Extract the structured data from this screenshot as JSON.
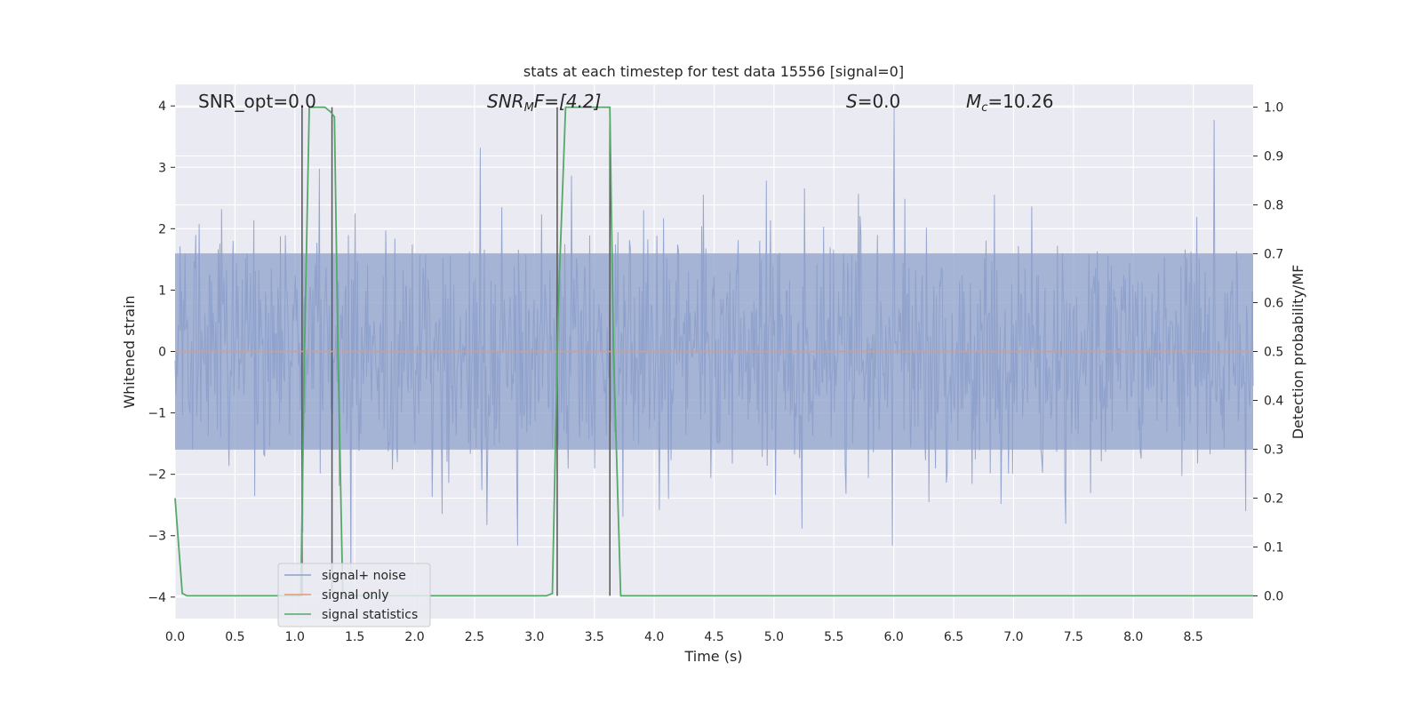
{
  "chart_data": {
    "type": "line",
    "title": "stats at each timestep for test data 15556 [signal=0]",
    "xlabel": "Time (s)",
    "ylabel_left": "Whitened strain",
    "ylabel_right": "Detection probability/MF",
    "xlim": [
      0,
      9
    ],
    "ylim_left": [
      -4.35,
      4.35
    ],
    "ylim_right": [
      -0.0465,
      1.0465
    ],
    "x_ticks": [
      "0.0",
      "0.5",
      "1.0",
      "1.5",
      "2.0",
      "2.5",
      "3.0",
      "3.5",
      "4.0",
      "4.5",
      "5.0",
      "5.5",
      "6.0",
      "6.5",
      "7.0",
      "7.5",
      "8.0",
      "8.5"
    ],
    "y_ticks_left": [
      "4",
      "3",
      "2",
      "1",
      "0",
      "−1",
      "−2",
      "−3",
      "−4"
    ],
    "y_ticks_right": [
      "1.0",
      "0.9",
      "0.8",
      "0.7",
      "0.6",
      "0.5",
      "0.4",
      "0.3",
      "0.2",
      "0.1",
      "0.0"
    ],
    "grid": true,
    "annotations": {
      "snr_opt": "SNR_opt=0.0",
      "snr_mf_base": "SNR",
      "snr_mf_sub": "M",
      "snr_mf_rest": "F=[4.2]",
      "s_italic": "S",
      "s_rest": "=0.0",
      "mc_base": "M",
      "mc_sub": "c",
      "mc_rest": "=10.26"
    },
    "series": [
      {
        "name": "signal+ noise",
        "color": "#8da0cb",
        "description_values": {
          "typical_envelope": [
            -1.6,
            1.6
          ],
          "extremes_approx": [
            -3.7,
            4.0
          ],
          "sample_rate_hz": 2048
        }
      },
      {
        "name": "signal only",
        "color": "#e39a74",
        "values_note_constant": 0
      },
      {
        "name": "signal statistics",
        "color": "#55a868",
        "x": [
          0.0,
          0.06,
          0.1,
          0.15,
          1.0,
          1.05,
          1.08,
          1.12,
          1.25,
          1.3,
          1.33,
          1.36,
          1.4,
          3.1,
          3.15,
          3.2,
          3.26,
          3.3,
          3.6,
          3.63,
          3.66,
          3.72,
          3.8,
          9.0
        ],
        "y": [
          0.2,
          0.005,
          0.0,
          0.0,
          0.0,
          0.0,
          0.5,
          1.0,
          1.0,
          0.99,
          0.98,
          0.5,
          0.0,
          0.0,
          0.005,
          0.6,
          1.0,
          1.0,
          1.0,
          1.0,
          0.5,
          0.0,
          0.0,
          0.0
        ]
      }
    ],
    "vertical_lines": [
      {
        "x": 1.06,
        "y_top": 1.0
      },
      {
        "x": 1.31,
        "y_top": 1.0
      },
      {
        "x": 3.19,
        "y_top": 1.0
      },
      {
        "x": 3.63,
        "y_top": 1.0
      }
    ],
    "legend": {
      "placement": "lower-left",
      "entries": [
        "signal+ noise",
        "signal only",
        "signal statistics"
      ]
    }
  }
}
